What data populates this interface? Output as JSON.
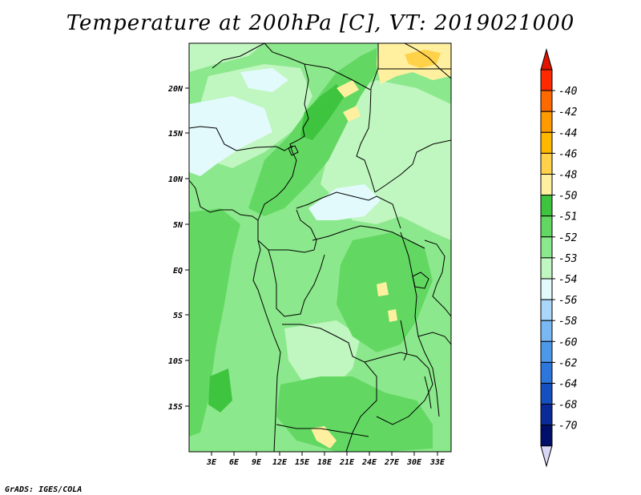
{
  "title": "Temperature at 200hPa [C], VT: 2019021000",
  "footer": "GrADS: IGES/COLA",
  "map": {
    "lat_labels": [
      "20N",
      "15N",
      "10N",
      "5N",
      "EQ",
      "5S",
      "10S",
      "15S"
    ],
    "lon_labels": [
      "3E",
      "6E",
      "9E",
      "12E",
      "15E",
      "18E",
      "21E",
      "24E",
      "27E",
      "30E",
      "33E"
    ]
  },
  "legend": {
    "labels": [
      "-40",
      "-42",
      "-44",
      "-46",
      "-48",
      "-50",
      "-51",
      "-52",
      "-53",
      "-54",
      "-56",
      "-58",
      "-60",
      "-62",
      "-64",
      "-68",
      "-70"
    ],
    "colors": [
      "#ff2a00",
      "#ff6a00",
      "#ff9a00",
      "#ffb800",
      "#ffd24a",
      "#fff0a0",
      "#3fc43f",
      "#62d862",
      "#8ce88c",
      "#c0f6c0",
      "#e2fafc",
      "#aad6fa",
      "#7ab8f4",
      "#4e98ea",
      "#2c76dc",
      "#1450c0",
      "#0a2a9a",
      "#00106a"
    ],
    "top_arrow_color": "#e01400",
    "bottom_arrow_color": "#d8d8f6"
  }
}
